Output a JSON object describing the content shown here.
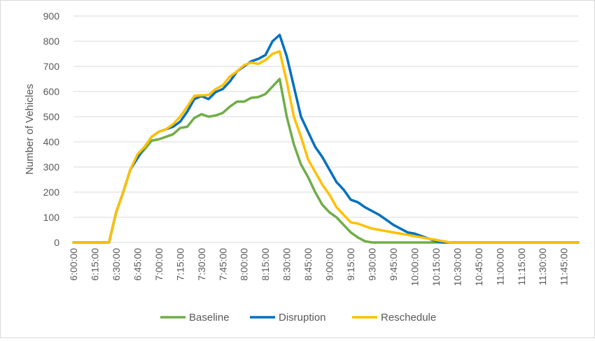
{
  "chart_data": {
    "type": "line",
    "title": "",
    "xlabel": "",
    "ylabel": "Number of Vehicles",
    "ylim": [
      0,
      900
    ],
    "y_ticks": [
      0,
      100,
      200,
      300,
      400,
      500,
      600,
      700,
      800,
      900
    ],
    "x_tick_labels": [
      "6:00:00",
      "6:15:00",
      "6:30:00",
      "6:45:00",
      "7:00:00",
      "7:15:00",
      "7:30:00",
      "7:45:00",
      "8:00:00",
      "8:15:00",
      "8:30:00",
      "8:45:00",
      "9:00:00",
      "9:15:00",
      "9:30:00",
      "9:45:00",
      "10:00:00",
      "10:15:00",
      "10:30:00",
      "10:45:00",
      "11:00:00",
      "11:15:00",
      "11:30:00",
      "11:45:00"
    ],
    "x_start": "6:00:00",
    "x_step_minutes": 5,
    "gridlines": "horizontal",
    "legend_position": "bottom",
    "series": [
      {
        "name": "Baseline",
        "color": "#70ad47",
        "values": [
          0,
          0,
          0,
          0,
          0,
          0,
          120,
          200,
          290,
          340,
          370,
          405,
          410,
          420,
          430,
          455,
          460,
          495,
          510,
          500,
          505,
          515,
          540,
          560,
          560,
          575,
          578,
          590,
          620,
          650,
          500,
          390,
          310,
          260,
          200,
          150,
          120,
          100,
          70,
          40,
          20,
          5,
          0,
          0,
          0,
          0,
          0,
          0,
          0,
          0,
          0,
          0,
          0,
          0,
          0,
          0,
          0,
          0,
          0,
          0,
          0,
          0,
          0,
          0,
          0,
          0,
          0,
          0,
          0,
          0,
          0,
          0
        ]
      },
      {
        "name": "Disruption",
        "color": "#0070c0",
        "values": [
          0,
          0,
          0,
          0,
          0,
          0,
          120,
          200,
          290,
          335,
          380,
          420,
          440,
          450,
          460,
          480,
          520,
          570,
          582,
          570,
          598,
          610,
          640,
          680,
          700,
          720,
          730,
          745,
          800,
          825,
          740,
          620,
          500,
          440,
          380,
          340,
          290,
          240,
          210,
          170,
          160,
          140,
          125,
          110,
          90,
          70,
          55,
          40,
          35,
          25,
          15,
          5,
          0,
          0,
          0,
          0,
          0,
          0,
          0,
          0,
          0,
          0,
          0,
          0,
          0,
          0,
          0,
          0,
          0,
          0,
          0,
          0
        ]
      },
      {
        "name": "Reschedule",
        "color": "#ffc000",
        "values": [
          0,
          0,
          0,
          0,
          0,
          0,
          120,
          200,
          290,
          350,
          380,
          420,
          440,
          450,
          470,
          500,
          540,
          583,
          585,
          586,
          610,
          625,
          660,
          680,
          705,
          715,
          710,
          725,
          750,
          760,
          640,
          500,
          420,
          330,
          280,
          230,
          190,
          140,
          110,
          80,
          75,
          65,
          55,
          50,
          45,
          40,
          35,
          30,
          25,
          20,
          15,
          10,
          5,
          0,
          0,
          0,
          0,
          0,
          0,
          0,
          0,
          0,
          0,
          0,
          0,
          0,
          0,
          0,
          0,
          0,
          0,
          0
        ]
      }
    ]
  }
}
